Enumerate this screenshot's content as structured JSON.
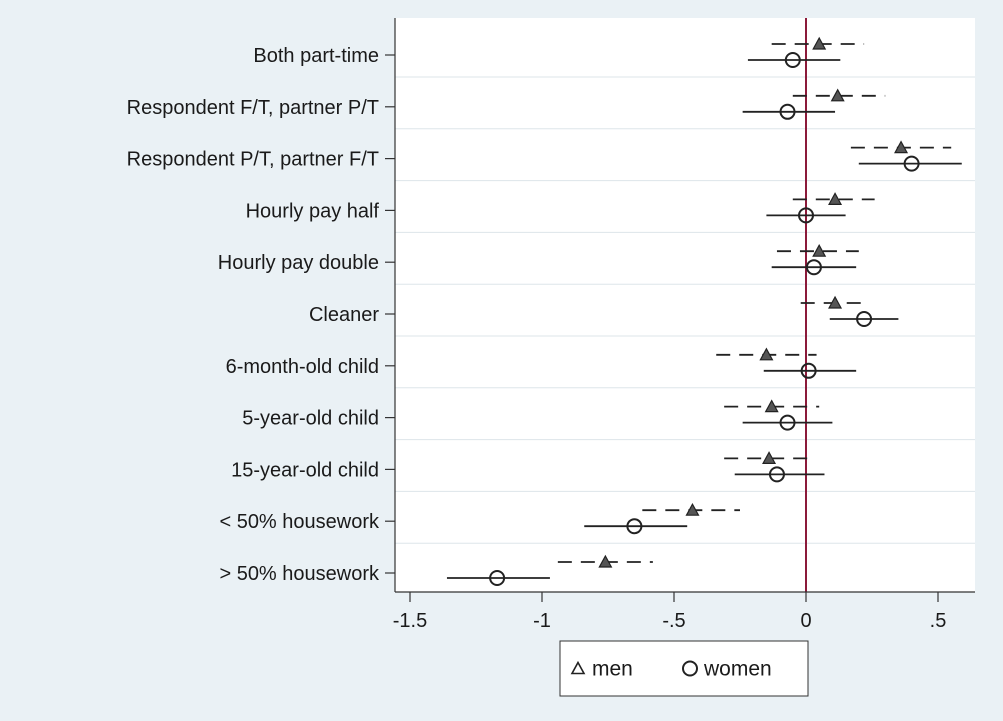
{
  "chart_data": {
    "type": "scatter",
    "title": "",
    "xlabel": "",
    "ylabel": "",
    "xlim": [
      -1.5,
      0.5
    ],
    "x_ticks": [
      -1.5,
      -1,
      -0.5,
      0,
      0.5
    ],
    "x_tick_labels": [
      "-1.5",
      "-1",
      "-.5",
      "0",
      ".5"
    ],
    "reference_line": 0,
    "categories": [
      "Both part-time",
      "Respondent F/T, partner P/T",
      "Respondent P/T, partner F/T",
      "Hourly pay half",
      "Hourly pay double",
      "Cleaner",
      "6-month-old child",
      "5-year-old child",
      "15-year-old child",
      "< 50% housework",
      "> 50% housework"
    ],
    "series": [
      {
        "name": "men",
        "marker": "triangle",
        "line_style": "dashed",
        "estimates": [
          0.05,
          0.12,
          0.36,
          0.11,
          0.05,
          0.11,
          -0.15,
          -0.13,
          -0.14,
          -0.43,
          -0.76
        ],
        "ci_low": [
          -0.13,
          -0.05,
          0.17,
          -0.05,
          -0.11,
          -0.02,
          -0.34,
          -0.31,
          -0.31,
          -0.62,
          -0.94
        ],
        "ci_high": [
          0.22,
          0.3,
          0.55,
          0.26,
          0.2,
          0.22,
          0.04,
          0.05,
          0.03,
          -0.25,
          -0.58
        ]
      },
      {
        "name": "women",
        "marker": "circle",
        "line_style": "solid",
        "estimates": [
          -0.05,
          -0.07,
          0.4,
          0.0,
          0.03,
          0.22,
          0.01,
          -0.07,
          -0.11,
          -0.65,
          -1.17
        ],
        "ci_low": [
          -0.22,
          -0.24,
          0.2,
          -0.15,
          -0.13,
          0.09,
          -0.16,
          -0.24,
          -0.27,
          -0.84,
          -1.36
        ],
        "ci_high": [
          0.13,
          0.11,
          0.59,
          0.15,
          0.19,
          0.35,
          0.19,
          0.1,
          0.07,
          -0.45,
          -0.97
        ]
      }
    ],
    "legend_position": "bottom",
    "grid": "horizontal"
  },
  "colors": {
    "background": "#eaf1f5",
    "plot_background": "#ffffff",
    "marker": "#555555",
    "reference_line": "#8b1a3a",
    "grid": "#dde5ea"
  }
}
